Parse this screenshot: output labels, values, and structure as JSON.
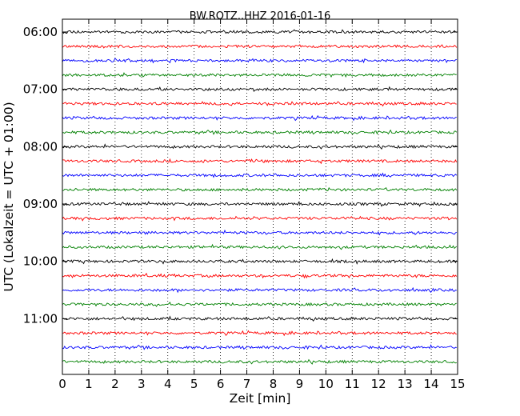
{
  "chart_data": {
    "type": "line",
    "title": "BW.ROTZ..HHZ 2016-01-16",
    "xlabel": "Zeit  [min]",
    "ylabel": "UTC (Lokalzeit = UTC + 01:00)",
    "xlim": [
      0,
      15
    ],
    "x_ticks": [
      0,
      1,
      2,
      3,
      4,
      5,
      6,
      7,
      8,
      9,
      10,
      11,
      12,
      13,
      14,
      15
    ],
    "x_tick_labels": [
      "0",
      "1",
      "2",
      "3",
      "4",
      "5",
      "6",
      "7",
      "8",
      "9",
      "10",
      "11",
      "12",
      "13",
      "14",
      "15"
    ],
    "y_tick_labels": [
      "06:00",
      "07:00",
      "08:00",
      "09:00",
      "10:00",
      "11:00"
    ],
    "row_minutes": 15,
    "grid": {
      "x": "dotted"
    },
    "rows": [
      {
        "start": "06:00",
        "color": "#000000"
      },
      {
        "start": "06:15",
        "color": "#ff0000"
      },
      {
        "start": "06:30",
        "color": "#0000ff"
      },
      {
        "start": "06:45",
        "color": "#008000"
      },
      {
        "start": "07:00",
        "color": "#000000"
      },
      {
        "start": "07:15",
        "color": "#ff0000"
      },
      {
        "start": "07:30",
        "color": "#0000ff"
      },
      {
        "start": "07:45",
        "color": "#008000"
      },
      {
        "start": "08:00",
        "color": "#000000"
      },
      {
        "start": "08:15",
        "color": "#ff0000"
      },
      {
        "start": "08:30",
        "color": "#0000ff"
      },
      {
        "start": "08:45",
        "color": "#008000"
      },
      {
        "start": "09:00",
        "color": "#000000"
      },
      {
        "start": "09:15",
        "color": "#ff0000"
      },
      {
        "start": "09:30",
        "color": "#0000ff"
      },
      {
        "start": "09:45",
        "color": "#008000"
      },
      {
        "start": "10:00",
        "color": "#000000"
      },
      {
        "start": "10:15",
        "color": "#ff0000"
      },
      {
        "start": "10:30",
        "color": "#0000ff"
      },
      {
        "start": "10:45",
        "color": "#008000"
      },
      {
        "start": "11:00",
        "color": "#000000"
      },
      {
        "start": "11:15",
        "color": "#ff0000"
      },
      {
        "start": "11:30",
        "color": "#0000ff"
      },
      {
        "start": "11:45",
        "color": "#008000"
      }
    ]
  }
}
